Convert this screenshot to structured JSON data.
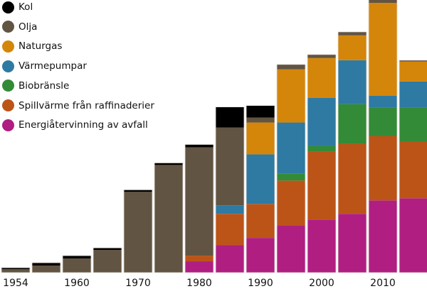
{
  "chart_data": {
    "type": "bar",
    "stacked": true,
    "title": "",
    "xlabel": "",
    "ylabel": "",
    "grid": false,
    "legend_position": "top-left",
    "categories": [
      "1954",
      "",
      "1960",
      "",
      "1970",
      "",
      "1980",
      "",
      "1990",
      "",
      "2000",
      "",
      "2010",
      ""
    ],
    "ylim": [
      0,
      38.5
    ],
    "series": [
      {
        "name": "Energiåtervinning av avfall",
        "color": "#b01e82",
        "values": [
          0,
          0,
          0,
          0,
          0,
          0,
          1.6,
          3.9,
          4.9,
          6.7,
          7.5,
          8.3,
          10.2,
          10.5
        ]
      },
      {
        "name": "Spillvärme från raffinaderier",
        "color": "#bc5418",
        "values": [
          0,
          0,
          0,
          0,
          0,
          0,
          0.8,
          4.4,
          4.8,
          6.3,
          9.6,
          9.9,
          9.1,
          8.0
        ]
      },
      {
        "name": "Biobränsle",
        "color": "#338b37",
        "values": [
          0,
          0,
          0,
          0,
          0,
          0,
          0,
          0,
          0,
          1.0,
          0.8,
          5.6,
          4.0,
          4.8
        ]
      },
      {
        "name": "Värmepumpar",
        "color": "#2e7aa3",
        "values": [
          0,
          0,
          0,
          0,
          0,
          0,
          0,
          1.2,
          7.0,
          7.2,
          6.8,
          6.2,
          1.7,
          3.7
        ]
      },
      {
        "name": "Naturgas",
        "color": "#d4860b",
        "values": [
          0,
          0,
          0,
          0,
          0,
          0,
          0,
          0,
          4.5,
          7.5,
          5.6,
          3.5,
          13.1,
          2.8
        ]
      },
      {
        "name": "Olja",
        "color": "#625442",
        "values": [
          0.5,
          1.0,
          2.0,
          3.2,
          11.4,
          15.2,
          15.3,
          11.0,
          0.7,
          0.7,
          0.5,
          0.5,
          0.5,
          0.2
        ]
      },
      {
        "name": "Kol",
        "color": "#000000",
        "values": [
          0.2,
          0.4,
          0.4,
          0.3,
          0.3,
          0.3,
          0.4,
          2.9,
          1.7,
          0,
          0,
          0,
          0,
          0
        ]
      }
    ]
  }
}
